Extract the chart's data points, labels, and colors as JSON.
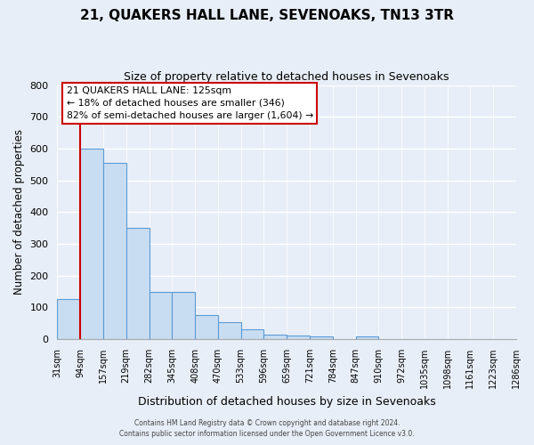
{
  "title": "21, QUAKERS HALL LANE, SEVENOAKS, TN13 3TR",
  "subtitle": "Size of property relative to detached houses in Sevenoaks",
  "xlabel": "Distribution of detached houses by size in Sevenoaks",
  "ylabel": "Number of detached properties",
  "bar_values": [
    125,
    600,
    555,
    350,
    148,
    148,
    75,
    53,
    32,
    14,
    12,
    7,
    0,
    7,
    0,
    0,
    0,
    0,
    0,
    0
  ],
  "bin_labels": [
    "31sqm",
    "94sqm",
    "157sqm",
    "219sqm",
    "282sqm",
    "345sqm",
    "408sqm",
    "470sqm",
    "533sqm",
    "596sqm",
    "659sqm",
    "721sqm",
    "784sqm",
    "847sqm",
    "910sqm",
    "972sqm",
    "1035sqm",
    "1098sqm",
    "1161sqm",
    "1223sqm",
    "1286sqm"
  ],
  "bar_color": "#c9ddf2",
  "bar_edge_color": "#5b9bd5",
  "vline_x": 1,
  "vline_color": "#cc0000",
  "annotation_text": "21 QUAKERS HALL LANE: 125sqm\n← 18% of detached houses are smaller (346)\n82% of semi-detached houses are larger (1,604) →",
  "annotation_box_edge_color": "#cc0000",
  "ylim": [
    0,
    800
  ],
  "yticks": [
    0,
    100,
    200,
    300,
    400,
    500,
    600,
    700,
    800
  ],
  "footer_line1": "Contains HM Land Registry data © Crown copyright and database right 2024.",
  "footer_line2": "Contains public sector information licensed under the Open Government Licence v3.0.",
  "bg_color": "#e8eef7",
  "plot_bg_color": "#e8eef7",
  "grid_color": "#ffffff"
}
